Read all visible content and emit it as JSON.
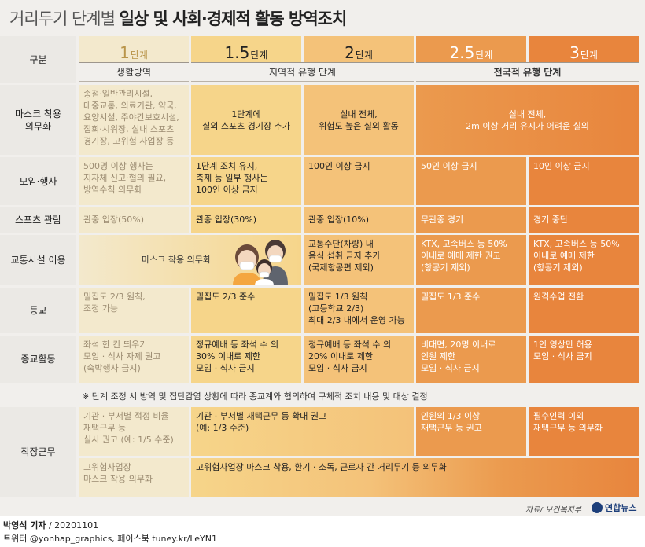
{
  "title": {
    "light": "거리두기 단계별",
    "bold": "일상 및 사회·경제적 활동 방역조치"
  },
  "header": {
    "label": "구분",
    "levels": [
      {
        "num": "1",
        "unit": "단계"
      },
      {
        "num": "1.5",
        "unit": "단계"
      },
      {
        "num": "2",
        "unit": "단계"
      },
      {
        "num": "2.5",
        "unit": "단계"
      },
      {
        "num": "3",
        "unit": "단계"
      }
    ],
    "sub": [
      "생활방역",
      "지역적 유행 단계",
      "전국적 유행 단계"
    ]
  },
  "rows": {
    "mask": {
      "label": "마스크 착용\n의무화",
      "l1": "종점·일반관리시설,\n대중교통, 의료기관, 약국,\n요양시설, 주야간보호시설,\n집회·시위장, 실내 스포츠\n경기장, 고위험 사업장 등",
      "l15": "1단계에\n실외 스포츠 경기장 추가",
      "l2": "실내 전체,\n위험도 높은 실외 활동",
      "l25_3": "실내 전체,\n2m 이상 거리 유지가 어려운 실외"
    },
    "gathering": {
      "label": "모임·행사",
      "l1": "500명 이상 행사는\n지자체 신고·협의 필요,\n방역수칙 의무화",
      "l15": "1단계 조치 유지,\n축제 등 일부 행사는\n100인 이상 금지",
      "l2": "100인 이상 금지",
      "l25": "50인 이상 금지",
      "l3": "10인 이상 금지"
    },
    "sports": {
      "label": "스포츠 관람",
      "l1": "관중 입장(50%)",
      "l15": "관중 입장(30%)",
      "l2": "관중 입장(10%)",
      "l25": "무관중 경기",
      "l3": "경기 중단"
    },
    "transport": {
      "label": "교통시설 이용",
      "l1_15": "마스크 착용 의무화",
      "l2": "교통수단(차량) 내\n음식 섭취 금지 추가\n(국제항공편 제외)",
      "l25": "KTX, 고속버스 등 50%\n이내로 예매 제한 권고\n(항공기 제외)",
      "l3": "KTX, 고속버스 등 50%\n이내로 예매 제한\n(항공기 제외)"
    },
    "school": {
      "label": "등교",
      "l1": "밀집도 2/3 원칙,\n조정 가능",
      "l15": "밀집도 2/3 준수",
      "l2": "밀집도 1/3 원칙\n(고등학교 2/3)\n최대 2/3 내에서 운영 가능",
      "l25": "밀집도 1/3 준수",
      "l3": "원격수업 전환"
    },
    "religion": {
      "label": "종교활동",
      "l1": "좌석 한 칸 띄우기\n모임 · 식사 자제 권고\n(숙박행사 금지)",
      "l15": "정규예배 등 좌석 수 의\n30% 이내로 제한\n모임 · 식사 금지",
      "l2": "정규예배 등 좌석 수 의\n20% 이내로 제한\n모임 · 식사 금지",
      "l25": "비대면, 20명 이내로\n인원 제한\n모임 · 식사 금지",
      "l3": "1인 영상만 허용\n모임 · 식사 금지",
      "note": "※ 단계 조정 시 방역 및 집단감염 상황에 따라 종교계와 협의하여 구체적 조치 내용 및 대상 결정"
    },
    "work": {
      "label": "직장근무",
      "a_l1": "기관 · 부서별 적정 비율\n재택근무 등\n실시 권고 (예: 1/5 수준)",
      "a_l15_2": "기관 · 부서별 재택근무 등 확대 권고\n(예: 1/3 수준)",
      "a_l25": "인원의 1/3 이상\n재택근무 등 권고",
      "a_l3": "필수인력 이외\n재택근무 등 의무화",
      "b_l1": "고위험사업장\n마스크 착용 의무화",
      "b_l15_3": "고위험사업장 마스크 착용, 환기 · 소독, 근로자 간 거리두기 등 의무화"
    }
  },
  "source": "자료/ 보건복지부",
  "logo": "연합뉴스",
  "footer": {
    "line1_bold": "박영석 기자",
    "line1": "/  20201101",
    "line2": "트위터 @yonhap_graphics, 페이스북 tuney.kr/LeYN1"
  },
  "colors": {
    "level1": "#f3e9cd",
    "level1_5": "#f6d58a",
    "level2": "#f4c279",
    "level2_5": "#eb9a4e",
    "level3": "#e8853d"
  },
  "icons": {
    "people": "people-with-masks-illustration"
  }
}
